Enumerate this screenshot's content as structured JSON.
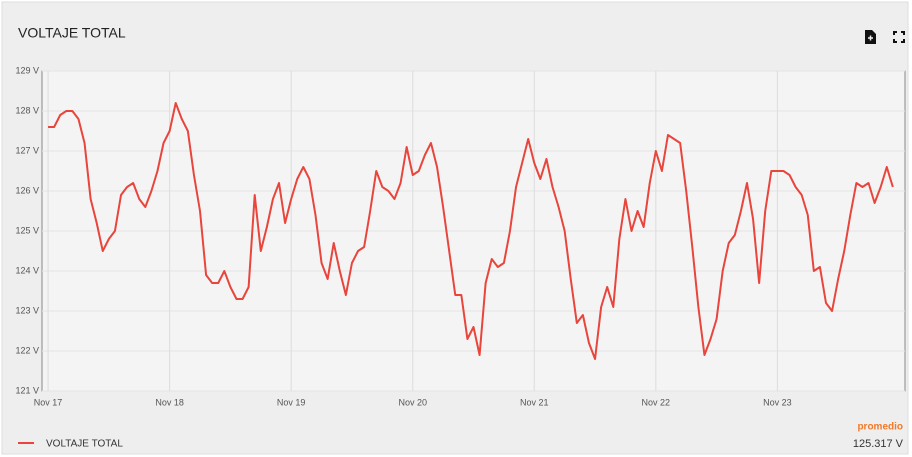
{
  "chart_data": {
    "type": "line",
    "title": "VOLTAJE TOTAL",
    "x": [
      17,
      17.05,
      17.1,
      17.15,
      17.2,
      17.25,
      17.3,
      17.35,
      17.4,
      17.45,
      17.5,
      17.55,
      17.6,
      17.65,
      17.7,
      17.75,
      17.8,
      17.85,
      17.9,
      17.95,
      18,
      18.05,
      18.1,
      18.15,
      18.2,
      18.25,
      18.3,
      18.35,
      18.4,
      18.45,
      18.5,
      18.55,
      18.6,
      18.65,
      18.7,
      18.75,
      18.8,
      18.85,
      18.9,
      18.95,
      19,
      19.05,
      19.1,
      19.15,
      19.2,
      19.25,
      19.3,
      19.35,
      19.4,
      19.45,
      19.5,
      19.55,
      19.6,
      19.65,
      19.7,
      19.75,
      19.8,
      19.85,
      19.9,
      19.95,
      20,
      20.05,
      20.1,
      20.15,
      20.2,
      20.25,
      20.3,
      20.35,
      20.4,
      20.45,
      20.5,
      20.55,
      20.6,
      20.65,
      20.7,
      20.75,
      20.8,
      20.85,
      20.9,
      20.95,
      21,
      21.05,
      21.1,
      21.15,
      21.2,
      21.25,
      21.3,
      21.35,
      21.4,
      21.45,
      21.5,
      21.55,
      21.6,
      21.65,
      21.7,
      21.75,
      21.8,
      21.85,
      21.9,
      21.95,
      22,
      22.05,
      22.1,
      22.15,
      22.2,
      22.25,
      22.3,
      22.35,
      22.4,
      22.45,
      22.5,
      22.55,
      22.6,
      22.65,
      22.7,
      22.75,
      22.8,
      22.85,
      22.9,
      22.95,
      23,
      23.05,
      23.1,
      23.15,
      23.2,
      23.25,
      23.3,
      23.35,
      23.4,
      23.45,
      23.5,
      23.55,
      23.6,
      23.65,
      23.7,
      23.75,
      23.8,
      23.85,
      23.9,
      23.95
    ],
    "series": [
      {
        "name": "VOLTAJE TOTAL",
        "color": "#e8453c",
        "values": [
          127.6,
          127.6,
          127.9,
          128.0,
          128.0,
          127.8,
          127.2,
          125.8,
          125.2,
          124.5,
          124.8,
          125.0,
          125.9,
          126.1,
          126.2,
          125.8,
          125.6,
          126.0,
          126.5,
          127.2,
          127.5,
          128.2,
          127.8,
          127.5,
          126.4,
          125.5,
          123.9,
          123.7,
          123.7,
          124.0,
          123.6,
          123.3,
          123.3,
          123.6,
          125.9,
          124.5,
          125.1,
          125.8,
          126.2,
          125.2,
          125.8,
          126.3,
          126.6,
          126.3,
          125.4,
          124.2,
          123.8,
          124.7,
          124.0,
          123.4,
          124.2,
          124.5,
          124.6,
          125.5,
          126.5,
          126.1,
          126.0,
          125.8,
          126.2,
          127.1,
          126.4,
          126.5,
          126.9,
          127.2,
          126.6,
          125.6,
          124.5,
          123.4,
          123.4,
          122.3,
          122.6,
          121.9,
          123.7,
          124.3,
          124.1,
          124.2,
          125.0,
          126.1,
          126.7,
          127.3,
          126.7,
          126.3,
          126.8,
          126.1,
          125.6,
          125.0,
          123.8,
          122.7,
          122.9,
          122.2,
          121.8,
          123.1,
          123.6,
          123.1,
          124.8,
          125.8,
          125.0,
          125.5,
          125.1,
          126.2,
          127.0,
          126.5,
          127.4,
          127.3,
          127.2,
          126.0,
          124.6,
          123.1,
          121.9,
          122.3,
          122.8,
          124.0,
          124.7,
          124.9,
          125.5,
          126.2,
          125.3,
          123.7,
          125.5,
          126.5,
          126.5,
          126.5,
          126.4,
          126.1,
          125.9,
          125.4,
          124.0,
          124.1,
          123.2,
          123.0,
          123.8,
          124.5,
          125.4,
          126.2,
          126.1,
          126.2,
          125.7,
          126.1,
          126.6,
          126.1
        ]
      }
    ],
    "xlim": [
      16.95,
      24.05
    ],
    "xticks": [
      {
        "value": 17,
        "label": "Nov 17"
      },
      {
        "value": 18,
        "label": "Nov 18"
      },
      {
        "value": 19,
        "label": "Nov 19"
      },
      {
        "value": 20,
        "label": "Nov 20"
      },
      {
        "value": 21,
        "label": "Nov 21"
      },
      {
        "value": 22,
        "label": "Nov 22"
      },
      {
        "value": 23,
        "label": "Nov 23"
      }
    ],
    "ylim": [
      121,
      129
    ],
    "yticks": [
      {
        "value": 121,
        "label": "121 V"
      },
      {
        "value": 122,
        "label": "122 V"
      },
      {
        "value": 123,
        "label": "123 V"
      },
      {
        "value": 124,
        "label": "124 V"
      },
      {
        "value": 125,
        "label": "125 V"
      },
      {
        "value": 126,
        "label": "126 V"
      },
      {
        "value": 127,
        "label": "127 V"
      },
      {
        "value": 128,
        "label": "128 V"
      },
      {
        "value": 129,
        "label": "129 V"
      }
    ],
    "grid": true,
    "annotations": [
      "promedio",
      "125.317 V"
    ]
  }
}
